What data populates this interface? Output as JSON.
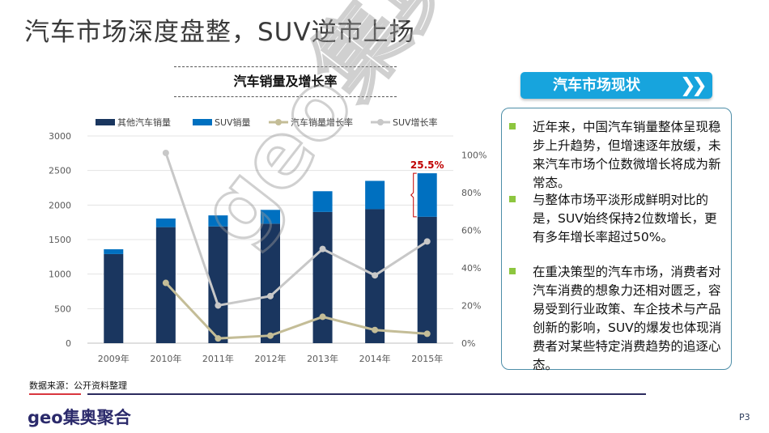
{
  "page_title": "汽车市场深度盘整，SUV逆市上扬",
  "chart_data": {
    "type": "bar+line",
    "title": "汽车销量及增长率",
    "categories": [
      "2009年",
      "2010年",
      "2011年",
      "2012年",
      "2013年",
      "2014年",
      "2015年"
    ],
    "series": [
      {
        "name": "其他汽车销量",
        "type": "stacked-bar",
        "axis": "left",
        "color": "#1a365f",
        "values": [
          1290,
          1680,
          1690,
          1730,
          1900,
          1940,
          1830
        ]
      },
      {
        "name": "SUV销量",
        "type": "stacked-bar",
        "axis": "left",
        "color": "#0070c0",
        "values": [
          70,
          125,
          160,
          200,
          300,
          410,
          630
        ]
      },
      {
        "name": "汽车销量增长率",
        "type": "line",
        "axis": "right",
        "color": "#c4bd97",
        "values": [
          null,
          32,
          2.5,
          4,
          14,
          7,
          5
        ]
      },
      {
        "name": "SUV增长率",
        "type": "line",
        "axis": "right",
        "color": "#c8c8c8",
        "values": [
          null,
          101,
          20,
          25,
          50,
          36,
          54
        ]
      }
    ],
    "left_axis": {
      "ylim": [
        0,
        3000
      ],
      "ticks": [
        "0",
        "500",
        "1000",
        "1500",
        "2000",
        "2500",
        "3000"
      ]
    },
    "right_axis": {
      "ylim": [
        0,
        110
      ],
      "ticks": [
        "0%",
        "20%",
        "40%",
        "60%",
        "80%",
        "100%"
      ]
    },
    "annotation": "25.5%",
    "legend": "top",
    "grid": true
  },
  "panel": {
    "header": "汽车市场现状",
    "header_icon": "double-chevron-right",
    "bullets": [
      "近年来，中国汽车销量整体呈现稳步上升趋势，但增速逐年放缓，未来汽车市场个位数微增长将成为新常态。",
      "与整体市场平淡形成鲜明对比的是，SUV始终保持2位数增长，更有多年增长率超过50%。",
      "在重决策型的汽车市场，消费者对汽车消费的想象力还相对匮乏，容易受到行业政策、车企技术与产品创新的影响，SUV的爆发也体现消费者对某些特定消费趋势的追逐心态。"
    ]
  },
  "footer": {
    "source": "数据来源：公开资料整理",
    "logo": "geo集奥聚合",
    "page": "P3"
  },
  "watermark": "geo集奥聚合"
}
